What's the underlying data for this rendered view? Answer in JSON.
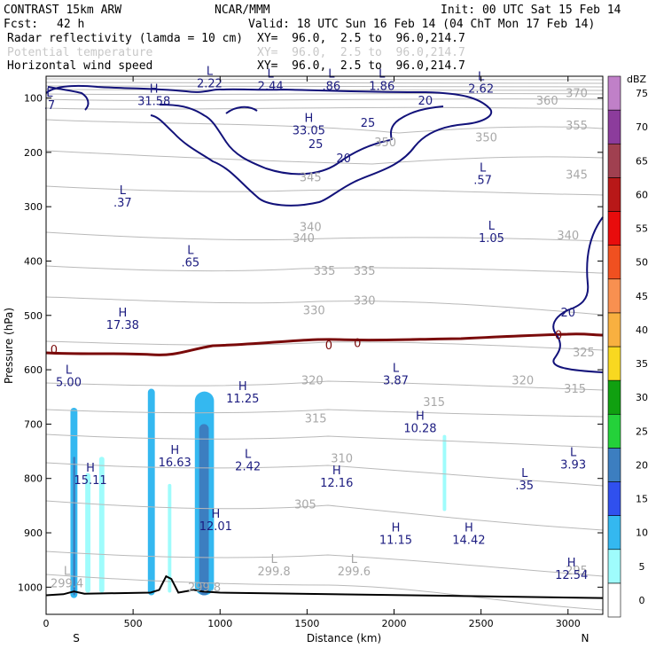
{
  "header": {
    "model": "CONTRAST 15km ARW",
    "org": "NCAR/MMM",
    "init": "Init: 00 UTC Sat 15 Feb 14",
    "fcst_label": "Fcst:",
    "fcst_value": "42 h",
    "valid": "Valid: 18 UTC Sun 16 Feb 14 (04 ChT Mon 17 Feb 14)",
    "fields": [
      {
        "name": "Radar reflectivity (lamda = 10 cm)",
        "xy": "XY=  96.0,  2.5 to  96.0,214.7",
        "color": "#000000"
      },
      {
        "name": "Potential temperature",
        "xy": "XY=  96.0,  2.5 to  96.0,214.7",
        "color": "#c8c8c8"
      },
      {
        "name": "Horizontal wind speed",
        "xy": "XY=  96.0,  2.5 to  96.0,214.7",
        "color": "#000000"
      }
    ]
  },
  "chart_data": {
    "type": "cross-section",
    "xlabel": "Distance (km)",
    "ylabel": "Pressure (hPa)",
    "xlim": [
      0,
      3200
    ],
    "ylim": [
      1050,
      60
    ],
    "x_ticks": [
      0,
      500,
      1000,
      1500,
      2000,
      2500,
      3000
    ],
    "y_ticks": [
      100,
      200,
      300,
      400,
      500,
      600,
      700,
      800,
      900,
      1000
    ],
    "x_end_labels": {
      "left": "S",
      "right": "N"
    },
    "colorbar": {
      "unit": "dBZ",
      "levels": [
        0,
        5,
        10,
        15,
        20,
        25,
        30,
        35,
        40,
        45,
        50,
        55,
        60,
        65,
        70,
        75
      ],
      "colors": [
        "#ffffff",
        "#9ffcfc",
        "#34b8f0",
        "#3050ee",
        "#3c7ec0",
        "#24d13a",
        "#10a010",
        "#f8d820",
        "#f8b040",
        "#f89050",
        "#f05020",
        "#e80c0c",
        "#b81818",
        "#a04050",
        "#8c3c9c",
        "#c080c8"
      ]
    },
    "reflectivity": [
      {
        "x": [
          140,
          180
        ],
        "p": [
          670,
          1020
        ],
        "dbz": 10,
        "core": {
          "x": [
            155,
            168
          ],
          "p": [
            760,
            1015
          ],
          "dbz": 20
        }
      },
      {
        "x": [
          225,
          255
        ],
        "p": [
          790,
          1010
        ],
        "dbz": 5
      },
      {
        "x": [
          305,
          335
        ],
        "p": [
          760,
          1010
        ],
        "dbz": 5
      },
      {
        "x": [
          585,
          625
        ],
        "p": [
          635,
          1015
        ],
        "dbz": 10
      },
      {
        "x": [
          700,
          720
        ],
        "p": [
          810,
          1010
        ],
        "dbz": 5
      },
      {
        "x": [
          855,
          965
        ],
        "p": [
          640,
          1015
        ],
        "dbz": 10,
        "core": {
          "x": [
            880,
            935
          ],
          "p": [
            700,
            1015
          ],
          "dbz": 20
        }
      },
      {
        "x": [
          2280,
          2300
        ],
        "p": [
          720,
          860
        ],
        "dbz": 5
      }
    ],
    "theta_labels": [
      {
        "v": "370",
        "x": 3050,
        "p": 98
      },
      {
        "v": "360",
        "x": 2880,
        "p": 112
      },
      {
        "v": "355",
        "x": 3050,
        "p": 158
      },
      {
        "v": "350",
        "x": 1950,
        "p": 189
      },
      {
        "v": "350",
        "x": 2530,
        "p": 180
      },
      {
        "v": "345",
        "x": 1520,
        "p": 253
      },
      {
        "v": "345",
        "x": 3050,
        "p": 248
      },
      {
        "v": "340",
        "x": 1520,
        "p": 345
      },
      {
        "v": "340",
        "x": 1480,
        "p": 365
      },
      {
        "v": "340",
        "x": 3000,
        "p": 360
      },
      {
        "v": "335",
        "x": 1600,
        "p": 425
      },
      {
        "v": "335",
        "x": 1830,
        "p": 425
      },
      {
        "v": "330",
        "x": 1540,
        "p": 498
      },
      {
        "v": "330",
        "x": 1830,
        "p": 480
      },
      {
        "v": "325",
        "x": 3090,
        "p": 575
      },
      {
        "v": "320",
        "x": 1530,
        "p": 627
      },
      {
        "v": "320",
        "x": 2740,
        "p": 627
      },
      {
        "v": "315",
        "x": 1550,
        "p": 697
      },
      {
        "v": "315",
        "x": 2230,
        "p": 667
      },
      {
        "v": "315",
        "x": 3040,
        "p": 642
      },
      {
        "v": "310",
        "x": 1700,
        "p": 770
      },
      {
        "v": "305",
        "x": 1490,
        "p": 855
      },
      {
        "v": "295",
        "x": 3050,
        "p": 977
      }
    ],
    "zero_labels": [
      {
        "v": "0",
        "x": 45,
        "p": 564
      },
      {
        "v": "0",
        "x": 1625,
        "p": 556
      },
      {
        "v": "0",
        "x": 1790,
        "p": 552
      },
      {
        "v": "0",
        "x": 2945,
        "p": 537
      }
    ],
    "wind_labels": [
      {
        "v": "20",
        "x": 2180,
        "p": 112
      },
      {
        "v": "25",
        "x": 1850,
        "p": 153
      },
      {
        "v": "25",
        "x": 1550,
        "p": 192
      },
      {
        "v": "20",
        "x": 1710,
        "p": 218
      },
      {
        "v": "20",
        "x": 3000,
        "p": 502
      }
    ],
    "extrema": [
      {
        "t": "L",
        "v": "2.22",
        "x": 940,
        "p": 80
      },
      {
        "t": "L",
        "v": "2.44",
        "x": 1290,
        "p": 85
      },
      {
        "t": "L",
        "v": ".86",
        "x": 1640,
        "p": 85
      },
      {
        "t": "L",
        "v": "1.86",
        "x": 1930,
        "p": 85
      },
      {
        "t": "L",
        "v": "2.62",
        "x": 2500,
        "p": 90
      },
      {
        "t": "H",
        "v": "31.58",
        "x": 620,
        "p": 113
      },
      {
        "t": "H",
        "v": "33.05",
        "x": 1510,
        "p": 167
      },
      {
        "t": "L",
        "v": ".7",
        "x": 20,
        "p": 120
      },
      {
        "t": "L",
        "v": ".37",
        "x": 440,
        "p": 300
      },
      {
        "t": "L",
        "v": ".57",
        "x": 2510,
        "p": 258
      },
      {
        "t": "L",
        "v": ".65",
        "x": 830,
        "p": 410
      },
      {
        "t": "L",
        "v": "1.05",
        "x": 2560,
        "p": 365
      },
      {
        "t": "H",
        "v": "17.38",
        "x": 440,
        "p": 525
      },
      {
        "t": "L",
        "v": "5.00",
        "x": 130,
        "p": 630
      },
      {
        "t": "L",
        "v": "3.87",
        "x": 2010,
        "p": 627
      },
      {
        "t": "H",
        "v": "11.25",
        "x": 1130,
        "p": 660
      },
      {
        "t": "H",
        "v": "10.28",
        "x": 2150,
        "p": 715
      },
      {
        "t": "H",
        "v": "16.63",
        "x": 740,
        "p": 778
      },
      {
        "t": "L",
        "v": "2.42",
        "x": 1160,
        "p": 785
      },
      {
        "t": "H",
        "v": "15.11",
        "x": 255,
        "p": 810
      },
      {
        "t": "H",
        "v": "12.16",
        "x": 1670,
        "p": 815
      },
      {
        "t": "L",
        "v": ".35",
        "x": 2750,
        "p": 820
      },
      {
        "t": "L",
        "v": "3.93",
        "x": 3030,
        "p": 782
      },
      {
        "t": "H",
        "v": "12.01",
        "x": 975,
        "p": 895
      },
      {
        "t": "H",
        "v": "11.15",
        "x": 2010,
        "p": 920
      },
      {
        "t": "H",
        "v": "14.42",
        "x": 2430,
        "p": 920
      },
      {
        "t": "H",
        "v": "12.54",
        "x": 3020,
        "p": 985
      }
    ],
    "extrema_gray": [
      {
        "t": "L",
        "v": "299.4",
        "x": 120,
        "p": 1000
      },
      {
        "t": "L",
        "v": "299.8",
        "x": 1310,
        "p": 978
      },
      {
        "t": "L",
        "v": "299.6",
        "x": 1770,
        "p": 978
      },
      {
        "t": "",
        "v": "299.8",
        "x": 910,
        "p": 1008
      }
    ],
    "terrain": {
      "x": [
        0,
        100,
        160,
        220,
        600,
        650,
        690,
        720,
        760,
        850,
        900,
        1000,
        3200
      ],
      "p": [
        1015,
        1013,
        1008,
        1012,
        1010,
        1005,
        980,
        985,
        1010,
        1005,
        1008,
        1010,
        1020
      ]
    }
  }
}
